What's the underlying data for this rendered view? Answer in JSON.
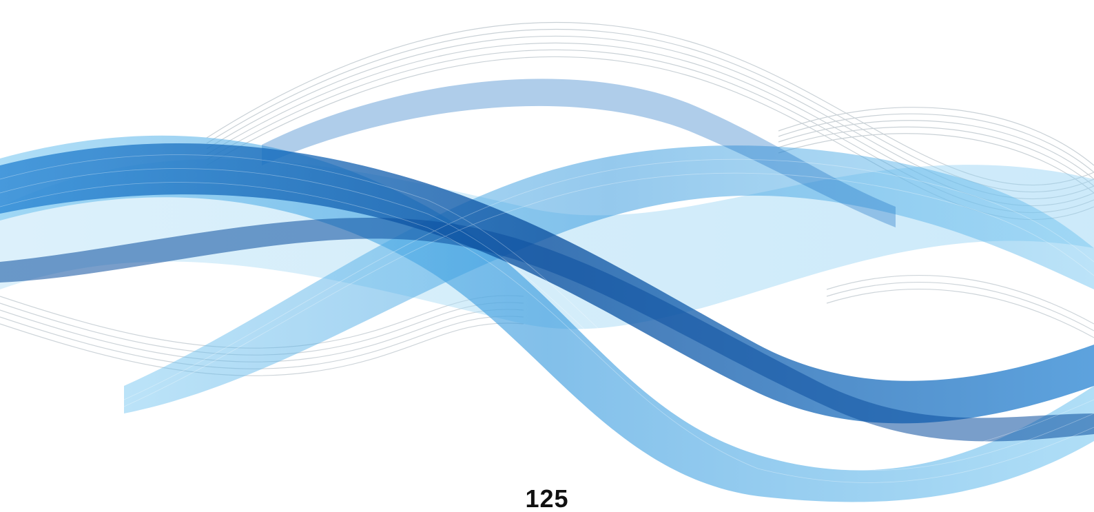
{
  "page": {
    "number": "125"
  },
  "artwork": {
    "description_icon": "abstract-blue-wave-icon",
    "colors": {
      "background": "#ffffff",
      "deep_blue": "#0b4f9e",
      "mid_blue": "#1f7fd1",
      "light_blue": "#6ec3f0",
      "pale_blue": "#b9e2f7",
      "gray_lines": "#b8c2c9",
      "page_number": "#111111"
    }
  }
}
